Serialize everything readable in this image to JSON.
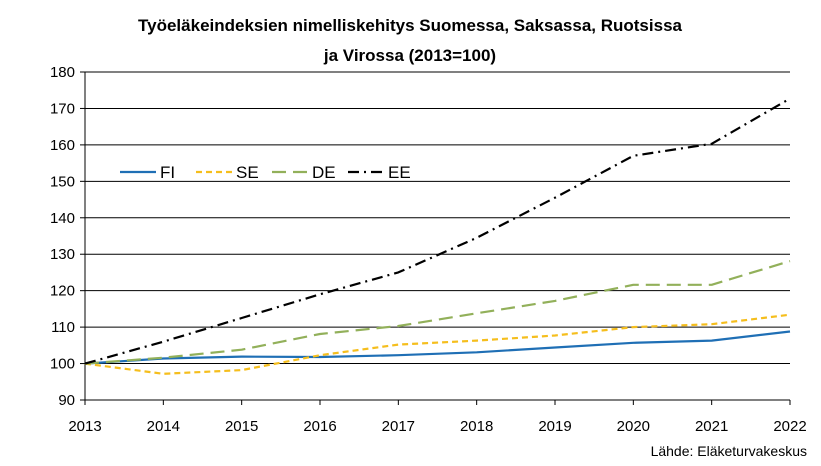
{
  "chart_data": {
    "type": "line",
    "title_lines": [
      "Työeläkeindeksien nimelliskehitys Suomessa, Saksassa, Ruotsissa",
      "ja Virossa (2013=100)"
    ],
    "xlabel": "",
    "ylabel": "",
    "x": [
      "2013",
      "2014",
      "2015",
      "2016",
      "2017",
      "2018",
      "2019",
      "2020",
      "2021",
      "2022"
    ],
    "ylim": [
      90,
      180
    ],
    "yticks": [
      90,
      100,
      110,
      120,
      130,
      140,
      150,
      160,
      170,
      180
    ],
    "grid": "horizontal",
    "legend_position": "top-left",
    "series": [
      {
        "name": "FI",
        "color": "#1F6FB5",
        "dash": "solid",
        "values": [
          100,
          101.4,
          101.9,
          101.8,
          102.3,
          103.1,
          104.4,
          105.7,
          106.3,
          108.8
        ]
      },
      {
        "name": "SE",
        "color": "#F5BE1D",
        "dash": "dashed",
        "values": [
          100,
          97.2,
          98.2,
          102.3,
          105.2,
          106.3,
          107.7,
          110.0,
          110.8,
          113.4
        ]
      },
      {
        "name": "DE",
        "color": "#92B05A",
        "dash": "long-dash",
        "values": [
          100,
          101.6,
          103.8,
          108.1,
          110.3,
          113.8,
          117.2,
          121.6,
          121.6,
          128.1
        ]
      },
      {
        "name": "EE",
        "color": "#000000",
        "dash": "dash-dot",
        "values": [
          100,
          106.0,
          112.5,
          119.0,
          125.0,
          134.5,
          145.5,
          157.0,
          160.3,
          172.7
        ]
      }
    ],
    "source": "Lähde: Eläketurvakeskus"
  }
}
